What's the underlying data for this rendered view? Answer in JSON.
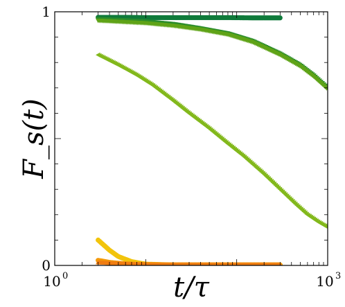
{
  "chart_data": {
    "type": "line",
    "xscale": "log",
    "xlim": [
      1,
      1000
    ],
    "ylim": [
      0,
      1
    ],
    "grid": false,
    "legend": "none",
    "xlabel": "t/τ",
    "ylabel": "F_s(t)",
    "x_ticks": [
      {
        "value": 1,
        "label": "10",
        "exp": "0"
      },
      {
        "value": 1000,
        "label": "10",
        "exp": "3"
      }
    ],
    "y_ticks": [
      {
        "value": 0,
        "label": "0"
      },
      {
        "value": 1,
        "label": "1"
      }
    ],
    "series": [
      {
        "color": "#0f7a3a",
        "marker": "circle",
        "x": [
          3,
          6,
          10,
          20,
          40,
          80,
          150,
          300
        ],
        "y": [
          0.978,
          0.978,
          0.977,
          0.977,
          0.977,
          0.977,
          0.976,
          0.976
        ]
      },
      {
        "color": "#2a8c2a",
        "marker": "triangle-down",
        "x": [
          3,
          10,
          20,
          40,
          80,
          150,
          300,
          500,
          700,
          1000
        ],
        "y": [
          0.972,
          0.962,
          0.952,
          0.935,
          0.915,
          0.885,
          0.835,
          0.79,
          0.75,
          0.7
        ]
      },
      {
        "color": "#5fa317",
        "marker": "triangle-down",
        "x": [
          3,
          10,
          20,
          40,
          80,
          150,
          300,
          500,
          700,
          1000
        ],
        "y": [
          0.965,
          0.955,
          0.945,
          0.93,
          0.91,
          0.88,
          0.83,
          0.785,
          0.745,
          0.695
        ]
      },
      {
        "color": "#82b81b",
        "marker": "triangle-left",
        "x": [
          3,
          5,
          8,
          12,
          20,
          30,
          50,
          80,
          120,
          200,
          300,
          450,
          600,
          800,
          1000
        ],
        "y": [
          0.83,
          0.79,
          0.75,
          0.71,
          0.65,
          0.6,
          0.54,
          0.48,
          0.43,
          0.36,
          0.3,
          0.24,
          0.2,
          0.17,
          0.15
        ]
      },
      {
        "color": "#f2c40c",
        "marker": "circle",
        "x": [
          3,
          4,
          5,
          7,
          10,
          20,
          40,
          80,
          150,
          300
        ],
        "y": [
          0.1,
          0.06,
          0.035,
          0.015,
          0.005,
          0.002,
          0.002,
          0.002,
          0.002,
          0.002
        ]
      },
      {
        "color": "#f39a0a",
        "marker": "circle",
        "x": [
          3,
          4,
          6,
          10,
          20,
          40,
          80,
          150,
          300
        ],
        "y": [
          0.02,
          0.012,
          0.006,
          0.003,
          0.002,
          0.002,
          0.002,
          0.002,
          0.002
        ]
      },
      {
        "color": "#f07c12",
        "marker": "triangle-up",
        "x": [
          3,
          5,
          8,
          12,
          20,
          40,
          80,
          150,
          300
        ],
        "y": [
          0.012,
          0.008,
          0.005,
          0.004,
          0.003,
          0.003,
          0.003,
          0.003,
          0.003
        ]
      }
    ]
  }
}
